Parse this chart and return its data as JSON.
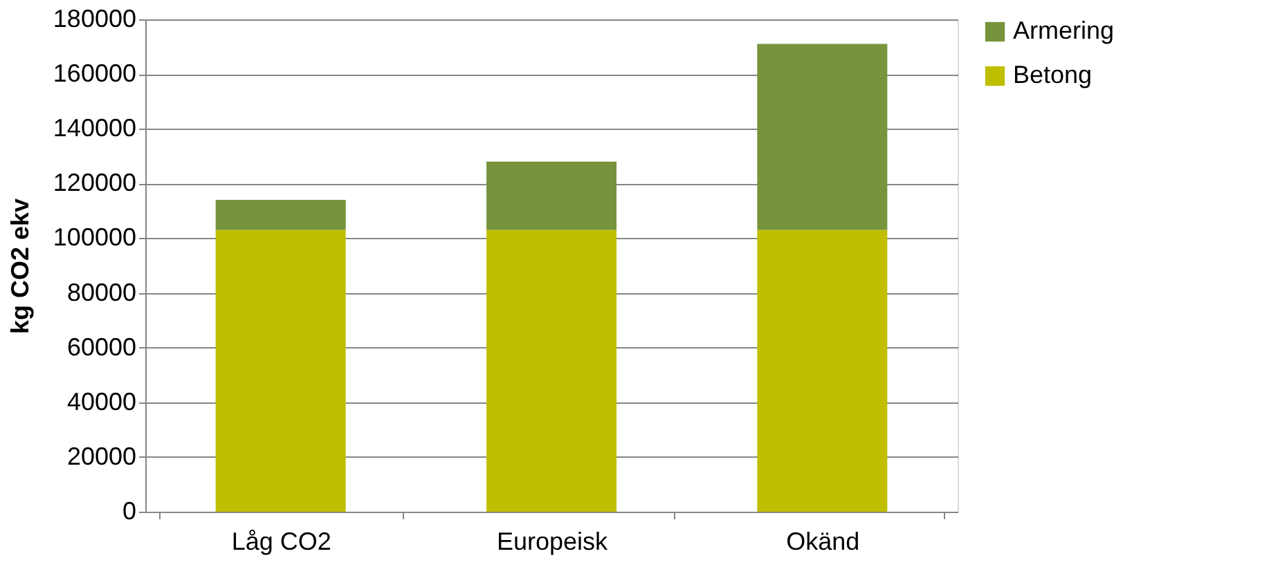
{
  "chart_data": {
    "type": "bar",
    "stacked": true,
    "ylabel": "kg CO2 ekv",
    "categories": [
      "Låg CO2",
      "Europeisk",
      "Okänd"
    ],
    "series": [
      {
        "name": "Betong",
        "color": "#bfbf00",
        "values": [
          103000,
          103000,
          103000
        ]
      },
      {
        "name": "Armering",
        "color": "#77933c",
        "values": [
          11000,
          25000,
          68000
        ]
      }
    ],
    "ylim": [
      0,
      180000
    ],
    "yticks": [
      0,
      20000,
      40000,
      60000,
      80000,
      100000,
      120000,
      140000,
      160000,
      180000
    ],
    "grid": "y",
    "legend": "right"
  }
}
